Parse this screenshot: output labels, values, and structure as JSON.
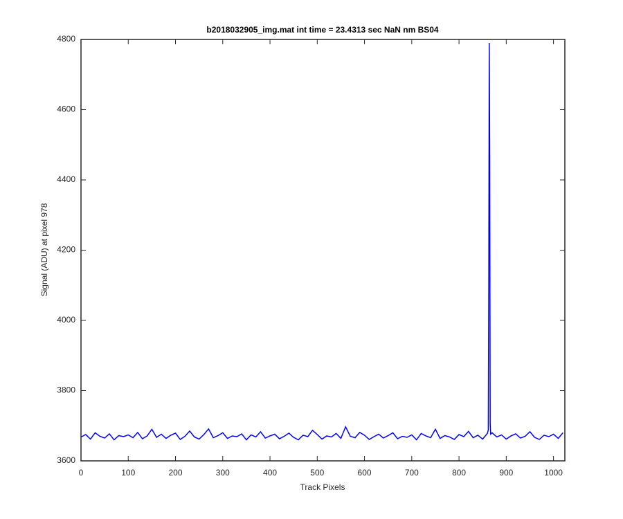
{
  "chart_data": {
    "type": "line",
    "title": "b2018032905_img.mat int time = 23.4313 sec  NaN nm BS04",
    "x_label": "Track Pixels",
    "y_label": "Signal (ADU) at pixel 978",
    "xlim": [
      0,
      1024
    ],
    "ylim": [
      3600,
      4800
    ],
    "xticks": [
      0,
      100,
      200,
      300,
      400,
      500,
      600,
      700,
      800,
      900,
      1000
    ],
    "yticks": [
      3600,
      3800,
      4000,
      4200,
      4400,
      4600,
      4800
    ],
    "grid": false,
    "x": [
      0,
      10,
      20,
      30,
      40,
      50,
      60,
      70,
      80,
      90,
      100,
      110,
      120,
      130,
      140,
      150,
      160,
      170,
      180,
      190,
      200,
      210,
      220,
      230,
      240,
      250,
      260,
      270,
      280,
      290,
      300,
      310,
      320,
      330,
      340,
      350,
      360,
      370,
      380,
      390,
      400,
      410,
      420,
      430,
      440,
      450,
      460,
      470,
      480,
      490,
      500,
      510,
      520,
      530,
      540,
      550,
      560,
      570,
      580,
      590,
      600,
      610,
      620,
      630,
      640,
      650,
      660,
      670,
      680,
      690,
      700,
      710,
      720,
      730,
      740,
      750,
      760,
      770,
      780,
      790,
      800,
      810,
      820,
      830,
      840,
      850,
      860,
      862,
      863,
      864,
      865,
      866,
      867,
      870,
      880,
      890,
      900,
      910,
      920,
      930,
      940,
      950,
      960,
      970,
      980,
      990,
      1000,
      1010,
      1020
    ],
    "series": [
      {
        "name": "signal",
        "color": "#0000ff",
        "values": [
          3668,
          3675,
          3662,
          3680,
          3670,
          3665,
          3677,
          3660,
          3672,
          3669,
          3674,
          3666,
          3681,
          3663,
          3671,
          3690,
          3667,
          3676,
          3664,
          3673,
          3679,
          3661,
          3670,
          3685,
          3668,
          3662,
          3675,
          3691,
          3666,
          3672,
          3680,
          3664,
          3671,
          3669,
          3677,
          3660,
          3674,
          3668,
          3683,
          3665,
          3671,
          3676,
          3663,
          3670,
          3679,
          3667,
          3660,
          3673,
          3669,
          3687,
          3675,
          3662,
          3671,
          3668,
          3678,
          3664,
          3697,
          3670,
          3666,
          3681,
          3673,
          3661,
          3669,
          3676,
          3665,
          3672,
          3680,
          3663,
          3670,
          3667,
          3674,
          3660,
          3678,
          3671,
          3666,
          3690,
          3664,
          3672,
          3668,
          3661,
          3675,
          3669,
          3684,
          3666,
          3673,
          3662,
          3678,
          3688,
          4120,
          4790,
          4470,
          3705,
          3676,
          3680,
          3668,
          3674,
          3662,
          3671,
          3677,
          3665,
          3670,
          3683,
          3667,
          3661,
          3673,
          3669,
          3676,
          3664,
          3680
        ]
      }
    ]
  }
}
